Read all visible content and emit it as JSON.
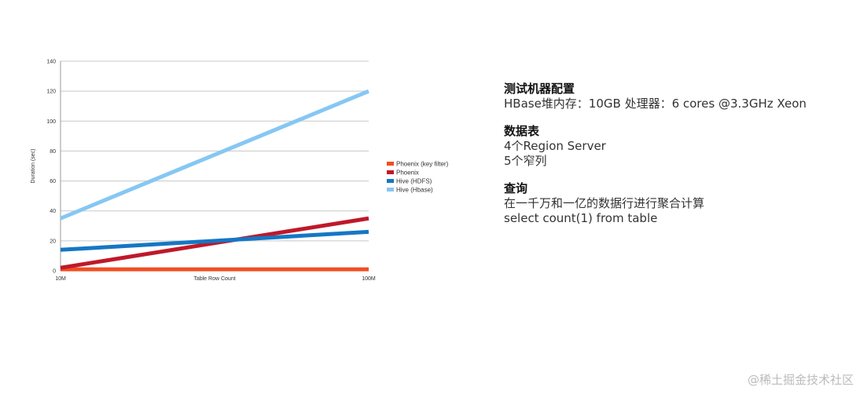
{
  "chart_data": {
    "type": "line",
    "title": "",
    "xlabel": "Table Row Count",
    "ylabel": "Duration (sec)",
    "x": [
      "10M",
      "100M"
    ],
    "ylim": [
      0,
      140
    ],
    "yticks": [
      0,
      20,
      40,
      60,
      80,
      100,
      120,
      140
    ],
    "grid": true,
    "legend_position": "right",
    "series": [
      {
        "name": "Phoenix (key filter)",
        "values": [
          1,
          1
        ],
        "color": "#f04e23"
      },
      {
        "name": "Phoenix",
        "values": [
          2,
          35
        ],
        "color": "#c0182a"
      },
      {
        "name": "Hive (HDFS)",
        "values": [
          14,
          26
        ],
        "color": "#1577c5"
      },
      {
        "name": "Hive (Hbase)",
        "values": [
          35,
          120
        ],
        "color": "#86c7f3"
      }
    ]
  },
  "info": {
    "sections": [
      {
        "heading": "测试机器配置",
        "lines": [
          "HBase堆内存：10GB 处理器：6 cores @3.3GHz Xeon"
        ]
      },
      {
        "heading": "数据表",
        "lines": [
          "4个Region Server",
          "5个窄列"
        ]
      },
      {
        "heading": "查询",
        "lines": [
          "在一千万和一亿的数据行进行聚合计算",
          "select count(1) from table"
        ]
      }
    ]
  },
  "watermark": "@稀土掘金技术社区"
}
